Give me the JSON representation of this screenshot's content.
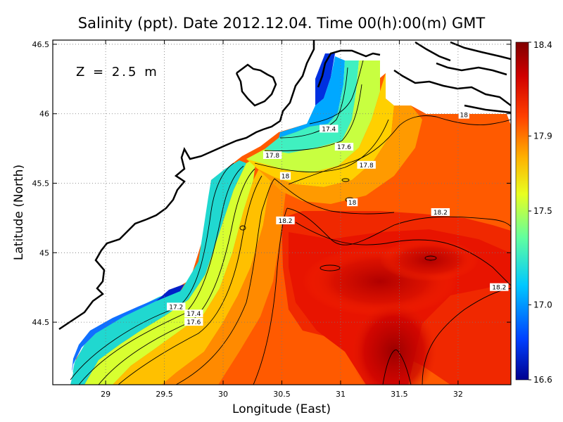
{
  "chart_data": {
    "type": "heatmap",
    "title": "Salinity (ppt). Date 2012.12.04. Time 00(h):00(m) GMT",
    "xlabel": "Longitude (East)",
    "ylabel": "Latitude (North)",
    "depth_label": "Z = 2.5 m",
    "xlim": [
      28.55,
      32.45
    ],
    "ylim": [
      44.05,
      46.53
    ],
    "x_ticks": [
      "29",
      "29.5",
      "30",
      "30.5",
      "31",
      "31.5",
      "32"
    ],
    "x_tick_values": [
      29,
      29.5,
      30,
      30.5,
      31,
      31.5,
      32
    ],
    "y_ticks": [
      "44.5",
      "45",
      "45.5",
      "46",
      "46.5"
    ],
    "y_tick_values": [
      44.5,
      45,
      45.5,
      46,
      46.5
    ],
    "grid": "dotted",
    "colorbar": {
      "range": [
        16.6,
        18.4
      ],
      "ticks": [
        "18.4",
        "17.9",
        "17.5",
        "17.0",
        "16.6"
      ],
      "tick_values": [
        18.4,
        17.9,
        17.5,
        17.0,
        16.6
      ],
      "colors": [
        "#00008f",
        "#0040ff",
        "#00c8ff",
        "#60ffa0",
        "#e8ff20",
        "#ffb000",
        "#ff4000",
        "#d00000",
        "#800000"
      ]
    },
    "contour_labels": [
      {
        "text": "17.2",
        "x": 29.6,
        "y": 44.61
      },
      {
        "text": "17.4",
        "x": 29.75,
        "y": 44.56
      },
      {
        "text": "17.6",
        "x": 29.75,
        "y": 44.5
      },
      {
        "text": "17.4",
        "x": 30.9,
        "y": 45.89
      },
      {
        "text": "17.6",
        "x": 31.03,
        "y": 45.76
      },
      {
        "text": "17.8",
        "x": 30.42,
        "y": 45.7
      },
      {
        "text": "17.8",
        "x": 31.22,
        "y": 45.63
      },
      {
        "text": "18",
        "x": 30.53,
        "y": 45.55
      },
      {
        "text": "18",
        "x": 31.1,
        "y": 45.36
      },
      {
        "text": "18.2",
        "x": 30.53,
        "y": 45.23
      },
      {
        "text": "18.2",
        "x": 31.85,
        "y": 45.29
      },
      {
        "text": "18.2",
        "x": 32.35,
        "y": 44.75
      },
      {
        "text": "18",
        "x": 32.05,
        "y": 45.99
      }
    ]
  }
}
